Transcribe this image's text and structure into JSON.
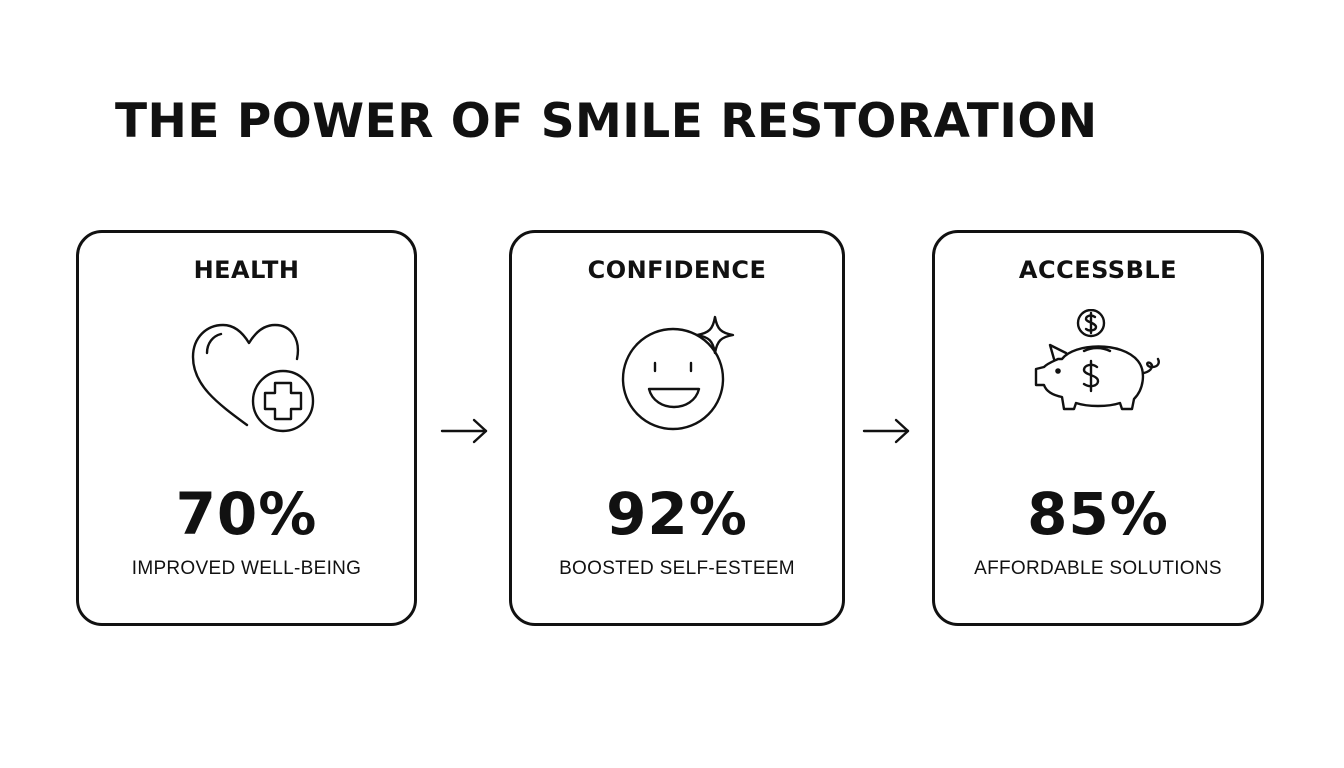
{
  "title": "THE POWER OF SMILE RESTORATION",
  "cards": [
    {
      "label": "HEALTH",
      "icon": "heart-plus-icon",
      "stat": "70%",
      "caption": "IMPROVED WELL-BEING"
    },
    {
      "label": "CONFIDENCE",
      "icon": "smiley-sparkle-icon",
      "stat": "92%",
      "caption": "BOOSTED SELF-ESTEEM"
    },
    {
      "label": "ACCESSBLE",
      "icon": "piggy-bank-dollar-icon",
      "stat": "85%",
      "caption": "AFFORDABLE SOLUTIONS"
    }
  ],
  "arrows": [
    "arrow-right-icon",
    "arrow-right-icon"
  ],
  "colors": {
    "background": "#ffffff",
    "ink": "#111111"
  }
}
